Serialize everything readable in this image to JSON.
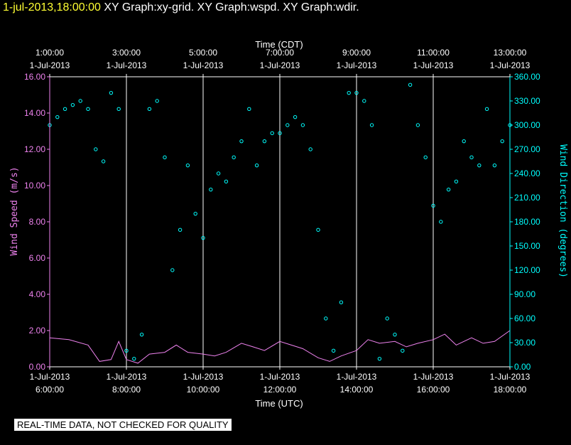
{
  "header": {
    "timestamp": "1-jul-2013,18:00:00",
    "graphs": [
      "XY Graph:xy-grid.",
      "XY Graph:wspd.",
      "XY Graph:wdir."
    ]
  },
  "disclaimer": "REAL-TIME DATA, NOT CHECKED FOR QUALITY",
  "colors": {
    "background": "#000000",
    "header_timestamp": "#ffff33",
    "wind_speed": "#ee82ee",
    "wind_direction": "#00ffff",
    "grid": "#ffffff"
  },
  "chart_data": {
    "type": "line",
    "grid": true,
    "x_range_hours_utc": [
      6,
      18
    ],
    "top_axis": {
      "title": "Time (CDT)",
      "ticks": [
        {
          "time": "1:00:00",
          "date": "1-Jul-2013"
        },
        {
          "time": "3:00:00",
          "date": "1-Jul-2013"
        },
        {
          "time": "5:00:00",
          "date": "1-Jul-2013"
        },
        {
          "time": "7:00:00",
          "date": "1-Jul-2013"
        },
        {
          "time": "9:00:00",
          "date": "1-Jul-2013"
        },
        {
          "time": "11:00:00",
          "date": "1-Jul-2013"
        },
        {
          "time": "13:00:00",
          "date": "1-Jul-2013"
        }
      ]
    },
    "bottom_axis": {
      "title": "Time (UTC)",
      "ticks": [
        {
          "date": "1-Jul-2013",
          "time": "6:00:00"
        },
        {
          "date": "1-Jul-2013",
          "time": "8:00:00"
        },
        {
          "date": "1-Jul-2013",
          "time": "10:00:00"
        },
        {
          "date": "1-Jul-2013",
          "time": "12:00:00"
        },
        {
          "date": "1-Jul-2013",
          "time": "14:00:00"
        },
        {
          "date": "1-Jul-2013",
          "time": "16:00:00"
        },
        {
          "date": "1-Jul-2013",
          "time": "18:00:00"
        }
      ]
    },
    "left_axis": {
      "title": "Wind Speed (m/s)",
      "ylim": [
        0,
        16
      ],
      "ticks": [
        "0.00",
        "2.00",
        "4.00",
        "6.00",
        "8.00",
        "10.00",
        "12.00",
        "14.00",
        "16.00"
      ]
    },
    "right_axis": {
      "title": "Wind Direction (degrees)",
      "ylim": [
        0,
        360
      ],
      "ticks": [
        "0.00",
        "30.00",
        "60.00",
        "90.00",
        "120.00",
        "150.00",
        "180.00",
        "210.00",
        "240.00",
        "270.00",
        "300.00",
        "330.00",
        "360.00"
      ]
    },
    "series": [
      {
        "name": "wspd",
        "axis": "left",
        "style": "line",
        "x": [
          6.0,
          6.5,
          7.0,
          7.3,
          7.6,
          7.8,
          8.0,
          8.3,
          8.6,
          9.0,
          9.3,
          9.6,
          10.0,
          10.3,
          10.6,
          11.0,
          11.3,
          11.6,
          12.0,
          12.3,
          12.6,
          13.0,
          13.3,
          13.6,
          14.0,
          14.3,
          14.6,
          15.0,
          15.3,
          15.6,
          16.0,
          16.3,
          16.6,
          17.0,
          17.3,
          17.6,
          18.0
        ],
        "values": [
          1.6,
          1.5,
          1.2,
          0.3,
          0.4,
          1.4,
          0.4,
          0.2,
          0.7,
          0.8,
          1.2,
          0.8,
          0.7,
          0.6,
          0.8,
          1.3,
          1.1,
          0.9,
          1.4,
          1.2,
          1.0,
          0.5,
          0.3,
          0.6,
          0.9,
          1.5,
          1.3,
          1.4,
          1.1,
          1.3,
          1.5,
          1.8,
          1.2,
          1.6,
          1.3,
          1.4,
          2.0
        ]
      },
      {
        "name": "wdir",
        "axis": "right",
        "style": "points",
        "x": [
          6.0,
          6.2,
          6.4,
          6.6,
          6.8,
          7.0,
          7.2,
          7.4,
          7.6,
          7.8,
          8.0,
          8.2,
          8.4,
          8.6,
          8.8,
          9.0,
          9.2,
          9.4,
          9.6,
          9.8,
          10.0,
          10.2,
          10.4,
          10.6,
          10.8,
          11.0,
          11.2,
          11.4,
          11.6,
          11.8,
          12.0,
          12.2,
          12.4,
          12.6,
          12.8,
          13.0,
          13.2,
          13.4,
          13.6,
          13.8,
          14.0,
          14.2,
          14.4,
          14.6,
          14.8,
          15.0,
          15.2,
          15.4,
          15.6,
          15.8,
          16.0,
          16.2,
          16.4,
          16.6,
          16.8,
          17.0,
          17.2,
          17.4,
          17.6,
          17.8,
          18.0
        ],
        "values": [
          300,
          310,
          320,
          325,
          330,
          320,
          270,
          255,
          340,
          320,
          20,
          10,
          40,
          320,
          330,
          260,
          120,
          170,
          250,
          190,
          160,
          220,
          240,
          230,
          260,
          280,
          320,
          250,
          280,
          290,
          290,
          300,
          310,
          300,
          270,
          170,
          60,
          20,
          80,
          340,
          340,
          330,
          300,
          10,
          60,
          40,
          20,
          350,
          300,
          260,
          200,
          180,
          220,
          230,
          280,
          260,
          250,
          320,
          250,
          280,
          300
        ]
      }
    ]
  }
}
